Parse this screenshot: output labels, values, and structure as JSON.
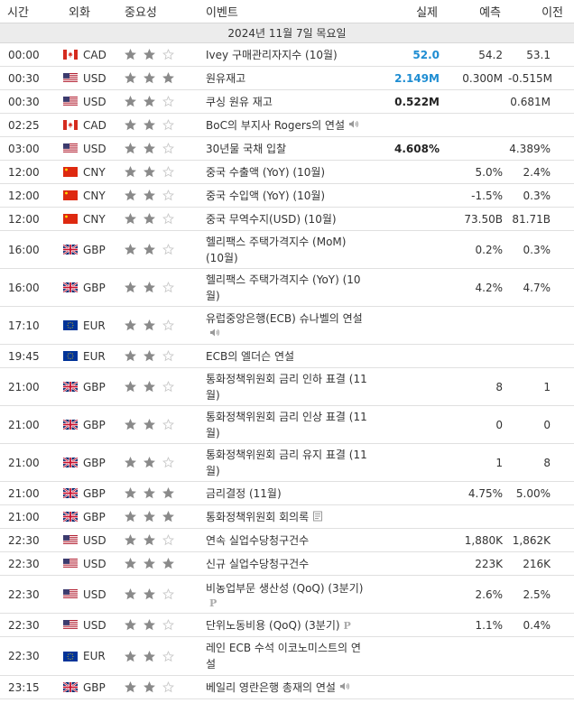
{
  "header": {
    "time": "시간",
    "currency": "외화",
    "importance": "중요성",
    "event": "이벤트",
    "actual": "실제",
    "forecast": "예측",
    "previous": "이전"
  },
  "date_band": "2024년 11월 7일 목요일",
  "colors": {
    "star_on": "#8a8a8a",
    "star_off": "#c8c8c8",
    "actual_blue": "#1e8dd2",
    "row_border": "#e0e0e0",
    "date_band_bg": "#ececec"
  },
  "rows": [
    {
      "time": "00:00",
      "flag": "ca",
      "cur": "CAD",
      "stars": 2,
      "event": "Ivey 구매관리자지수 (10월)",
      "icon": "",
      "actual": "52.0",
      "actual_color": "blue",
      "forecast": "54.2",
      "previous": "53.1",
      "h": "h1"
    },
    {
      "time": "00:30",
      "flag": "us",
      "cur": "USD",
      "stars": 3,
      "event": "원유재고",
      "icon": "",
      "actual": "2.149M",
      "actual_color": "blue",
      "forecast": "0.300M",
      "previous": "-0.515M",
      "h": "h1"
    },
    {
      "time": "00:30",
      "flag": "us",
      "cur": "USD",
      "stars": 2,
      "event": "쿠싱 원유 재고",
      "icon": "",
      "actual": "0.522M",
      "actual_color": "black",
      "forecast": "",
      "previous": "0.681M",
      "h": "h1"
    },
    {
      "time": "02:25",
      "flag": "ca",
      "cur": "CAD",
      "stars": 2,
      "event": "BoC의 부지사 Rogers의 연설",
      "icon": "speaker-icon",
      "actual": "",
      "actual_color": "black",
      "forecast": "",
      "previous": "",
      "h": "h1"
    },
    {
      "time": "03:00",
      "flag": "us",
      "cur": "USD",
      "stars": 2,
      "event": "30년물 국채 입찰",
      "icon": "",
      "actual": "4.608%",
      "actual_color": "black",
      "forecast": "",
      "previous": "4.389%",
      "h": "h1"
    },
    {
      "time": "12:00",
      "flag": "cn",
      "cur": "CNY",
      "stars": 2,
      "event": "중국 수출액 (YoY) (10월)",
      "icon": "",
      "actual": "",
      "actual_color": "black",
      "forecast": "5.0%",
      "previous": "2.4%",
      "h": "h1"
    },
    {
      "time": "12:00",
      "flag": "cn",
      "cur": "CNY",
      "stars": 2,
      "event": "중국 수입액 (YoY) (10월)",
      "icon": "",
      "actual": "",
      "actual_color": "black",
      "forecast": "-1.5%",
      "previous": "0.3%",
      "h": "h1"
    },
    {
      "time": "12:00",
      "flag": "cn",
      "cur": "CNY",
      "stars": 2,
      "event": "중국 무역수지(USD) (10월)",
      "icon": "",
      "actual": "",
      "actual_color": "black",
      "forecast": "73.50B",
      "previous": "81.71B",
      "h": "h1"
    },
    {
      "time": "16:00",
      "flag": "gb",
      "cur": "GBP",
      "stars": 2,
      "event": "헬리팩스 주택가격지수 (MoM) (10월)",
      "icon": "",
      "actual": "",
      "actual_color": "black",
      "forecast": "0.2%",
      "previous": "0.3%",
      "h": "h2"
    },
    {
      "time": "16:00",
      "flag": "gb",
      "cur": "GBP",
      "stars": 2,
      "event": "헬리팩스 주택가격지수 (YoY) (10월)",
      "icon": "",
      "actual": "",
      "actual_color": "black",
      "forecast": "4.2%",
      "previous": "4.7%",
      "h": "h2"
    },
    {
      "time": "17:10",
      "flag": "eu",
      "cur": "EUR",
      "stars": 2,
      "event": "유럽중앙은행(ECB) 슈나벨의 연설",
      "icon": "speaker-icon",
      "actual": "",
      "actual_color": "black",
      "forecast": "",
      "previous": "",
      "h": "h2"
    },
    {
      "time": "19:45",
      "flag": "eu",
      "cur": "EUR",
      "stars": 2,
      "event": "ECB의 엘더슨 연설",
      "icon": "",
      "actual": "",
      "actual_color": "black",
      "forecast": "",
      "previous": "",
      "h": "h1"
    },
    {
      "time": "21:00",
      "flag": "gb",
      "cur": "GBP",
      "stars": 2,
      "event": "통화정책위원회 금리 인하 표결 (11월)",
      "icon": "",
      "actual": "",
      "actual_color": "black",
      "forecast": "8",
      "previous": "1",
      "h": "h2"
    },
    {
      "time": "21:00",
      "flag": "gb",
      "cur": "GBP",
      "stars": 2,
      "event": "통화정책위원회 금리 인상 표결 (11월)",
      "icon": "",
      "actual": "",
      "actual_color": "black",
      "forecast": "0",
      "previous": "0",
      "h": "h2"
    },
    {
      "time": "21:00",
      "flag": "gb",
      "cur": "GBP",
      "stars": 2,
      "event": "통화정책위원회 금리 유지 표결 (11월)",
      "icon": "",
      "actual": "",
      "actual_color": "black",
      "forecast": "1",
      "previous": "8",
      "h": "h2"
    },
    {
      "time": "21:00",
      "flag": "gb",
      "cur": "GBP",
      "stars": 3,
      "event": "금리결정 (11월)",
      "icon": "",
      "actual": "",
      "actual_color": "black",
      "forecast": "4.75%",
      "previous": "5.00%",
      "h": "h1"
    },
    {
      "time": "21:00",
      "flag": "gb",
      "cur": "GBP",
      "stars": 3,
      "event": "통화정책위원회 회의록",
      "icon": "document-icon",
      "actual": "",
      "actual_color": "black",
      "forecast": "",
      "previous": "",
      "h": "h1"
    },
    {
      "time": "22:30",
      "flag": "us",
      "cur": "USD",
      "stars": 2,
      "event": "연속 실업수당청구건수",
      "icon": "",
      "actual": "",
      "actual_color": "black",
      "forecast": "1,880K",
      "previous": "1,862K",
      "h": "h1"
    },
    {
      "time": "22:30",
      "flag": "us",
      "cur": "USD",
      "stars": 3,
      "event": "신규 실업수당청구건수",
      "icon": "",
      "actual": "",
      "actual_color": "black",
      "forecast": "223K",
      "previous": "216K",
      "h": "h1"
    },
    {
      "time": "22:30",
      "flag": "us",
      "cur": "USD",
      "stars": 2,
      "event": "비농업부문 생산성 (QoQ) (3분기)",
      "icon": "preliminary-icon",
      "actual": "",
      "actual_color": "black",
      "forecast": "2.6%",
      "previous": "2.5%",
      "h": "h2"
    },
    {
      "time": "22:30",
      "flag": "us",
      "cur": "USD",
      "stars": 2,
      "event": "단위노동비용 (QoQ) (3분기)",
      "icon": "preliminary-icon",
      "actual": "",
      "actual_color": "black",
      "forecast": "1.1%",
      "previous": "0.4%",
      "h": "h1"
    },
    {
      "time": "22:30",
      "flag": "eu",
      "cur": "EUR",
      "stars": 2,
      "event": "레인 ECB 수석 이코노미스트의 연설",
      "icon": "",
      "actual": "",
      "actual_color": "black",
      "forecast": "",
      "previous": "",
      "h": "h2b"
    },
    {
      "time": "23:15",
      "flag": "gb",
      "cur": "GBP",
      "stars": 2,
      "event": "베일리 영란은행 총재의 연설",
      "icon": "speaker-icon",
      "actual": "",
      "actual_color": "black",
      "forecast": "",
      "previous": "",
      "h": "h1"
    }
  ]
}
